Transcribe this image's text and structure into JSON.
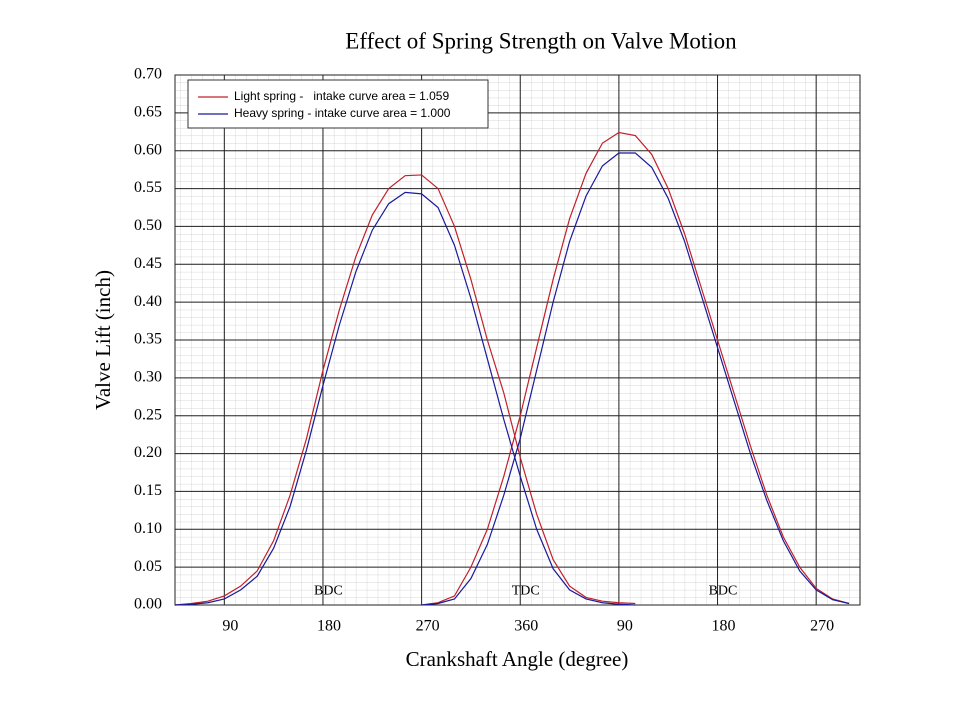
{
  "chart_data": {
    "type": "line",
    "title": "Effect of Spring Strength on Valve Motion",
    "x_label": "Crankshaft Angle (degree)",
    "y_label": "Valve Lift (inch)",
    "xlim": [
      45,
      670
    ],
    "ylim": [
      0,
      0.7
    ],
    "xticks": [
      90,
      180,
      270,
      360,
      {
        "value": 450,
        "label": "90"
      },
      {
        "value": 540,
        "label": "180"
      },
      {
        "value": 630,
        "label": "270"
      }
    ],
    "yticks": [
      {
        "value": 0,
        "label": "0.00"
      },
      0.05,
      {
        "value": 0.1,
        "label": "0.10"
      },
      0.15,
      {
        "value": 0.2,
        "label": "0.20"
      },
      0.25,
      {
        "value": 0.3,
        "label": "0.30"
      },
      0.35,
      {
        "value": 0.4,
        "label": "0.40"
      },
      0.45,
      {
        "value": 0.5,
        "label": "0.50"
      },
      0.55,
      {
        "value": 0.6,
        "label": "0.60"
      },
      0.65,
      {
        "value": 0.7,
        "label": "0.70"
      }
    ],
    "grid": true,
    "legend": "upper left",
    "annotations": [
      {
        "text": "BDC",
        "x": 185,
        "y": 0.018
      },
      {
        "text": "TDC",
        "x": 365,
        "y": 0.018
      },
      {
        "text": "BDC",
        "x": 545,
        "y": 0.018
      }
    ],
    "series": [
      {
        "name": "Light spring -   intake curve area = 1.059",
        "color": "#c0202a",
        "curves": [
          {
            "x": [
              45,
              60,
              75,
              90,
              105,
              120,
              135,
              150,
              165,
              180,
              195,
              210,
              225,
              240,
              255,
              270,
              285,
              300,
              315,
              330,
              345,
              360,
              375,
              390,
              405,
              420,
              435,
              450,
              465
            ],
            "values": [
              0,
              0.002,
              0.005,
              0.012,
              0.025,
              0.045,
              0.085,
              0.145,
              0.22,
              0.31,
              0.39,
              0.46,
              0.515,
              0.55,
              0.567,
              0.568,
              0.55,
              0.5,
              0.43,
              0.35,
              0.28,
              0.195,
              0.12,
              0.06,
              0.025,
              0.01,
              0.005,
              0.003,
              0.002
            ]
          },
          {
            "x": [
              270,
              285,
              300,
              315,
              330,
              345,
              360,
              375,
              390,
              405,
              420,
              435,
              450,
              465,
              480,
              495,
              510,
              525,
              540,
              555,
              570,
              585,
              600,
              615,
              630,
              645,
              660
            ],
            "values": [
              0,
              0.003,
              0.012,
              0.05,
              0.1,
              0.17,
              0.25,
              0.34,
              0.43,
              0.51,
              0.57,
              0.61,
              0.624,
              0.62,
              0.595,
              0.55,
              0.49,
              0.42,
              0.35,
              0.28,
              0.21,
              0.145,
              0.09,
              0.05,
              0.022,
              0.008,
              0.002
            ]
          }
        ]
      },
      {
        "name": "Heavy spring - intake curve area = 1.000",
        "color": "#1a1a9a",
        "curves": [
          {
            "x": [
              45,
              60,
              75,
              90,
              105,
              120,
              135,
              150,
              165,
              180,
              195,
              210,
              225,
              240,
              255,
              270,
              285,
              300,
              315,
              330,
              345,
              360,
              375,
              390,
              405,
              420,
              435,
              450,
              465
            ],
            "values": [
              0,
              0.001,
              0.003,
              0.008,
              0.02,
              0.038,
              0.075,
              0.13,
              0.205,
              0.29,
              0.37,
              0.44,
              0.495,
              0.53,
              0.545,
              0.543,
              0.525,
              0.475,
              0.405,
              0.325,
              0.245,
              0.17,
              0.1,
              0.048,
              0.02,
              0.008,
              0.003,
              0.001,
              0
            ]
          },
          {
            "x": [
              270,
              285,
              300,
              315,
              330,
              345,
              360,
              375,
              390,
              405,
              420,
              435,
              450,
              465,
              480,
              495,
              510,
              525,
              540,
              555,
              570,
              585,
              600,
              615,
              630,
              645,
              660
            ],
            "values": [
              0,
              0.002,
              0.008,
              0.035,
              0.08,
              0.145,
              0.22,
              0.31,
              0.4,
              0.48,
              0.54,
              0.58,
              0.597,
              0.597,
              0.578,
              0.537,
              0.48,
              0.41,
              0.34,
              0.27,
              0.2,
              0.138,
              0.085,
              0.045,
              0.02,
              0.007,
              0.002
            ]
          }
        ]
      }
    ]
  }
}
